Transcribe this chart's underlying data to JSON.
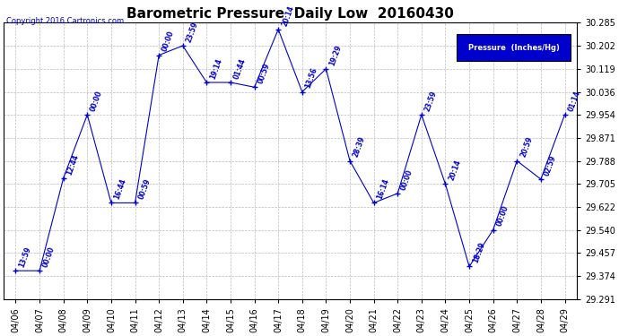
{
  "title": "Barometric Pressure  Daily Low  20160430",
  "copyright": "Copyright 2016 Cartronics.com",
  "legend_label": "Pressure  (Inches/Hg)",
  "dates": [
    "04/06",
    "04/07",
    "04/08",
    "04/09",
    "04/10",
    "04/11",
    "04/12",
    "04/13",
    "04/14",
    "04/15",
    "04/16",
    "04/17",
    "04/18",
    "04/19",
    "04/20",
    "04/21",
    "04/22",
    "04/23",
    "04/24",
    "04/25",
    "04/26",
    "04/27",
    "04/28",
    "04/29"
  ],
  "values": [
    29.393,
    29.393,
    29.726,
    29.954,
    29.637,
    29.637,
    30.168,
    30.202,
    30.07,
    30.07,
    30.053,
    30.261,
    30.036,
    30.119,
    29.788,
    29.637,
    29.671,
    29.954,
    29.705,
    29.408,
    29.54,
    29.788,
    29.722,
    29.954
  ],
  "times": [
    "13:59",
    "00:00",
    "12:44",
    "00:00",
    "16:44",
    "00:59",
    "00:00",
    "23:59",
    "19:14",
    "01:44",
    "00:59",
    "20:14",
    "13:56",
    "19:29",
    "28:39",
    "16:14",
    "00:00",
    "23:59",
    "20:14",
    "18:29",
    "00:00",
    "20:59",
    "02:59",
    "01:14"
  ],
  "ylim_min": 29.291,
  "ylim_max": 30.285,
  "yticks": [
    29.291,
    29.374,
    29.457,
    29.54,
    29.622,
    29.705,
    29.788,
    29.871,
    29.954,
    30.036,
    30.119,
    30.202,
    30.285
  ],
  "line_color": "#0000CC",
  "marker": "+",
  "bg_color": "#ffffff",
  "grid_color": "#bbbbbb",
  "title_fontsize": 11,
  "tick_fontsize": 7,
  "annot_fontsize": 5.5,
  "legend_bg": "#0000CC",
  "legend_text_color": "#ffffff"
}
